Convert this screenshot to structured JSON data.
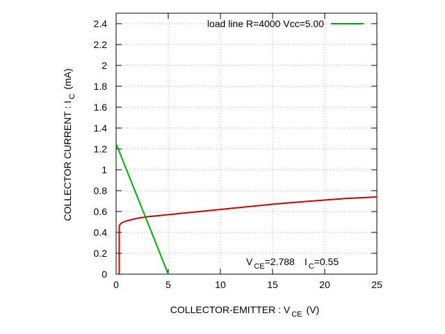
{
  "chart_data": {
    "type": "line",
    "title": "",
    "xlabel": {
      "main": "COLLECTOR-EMITTER : V",
      "sub": "CE",
      "unit": "(V)"
    },
    "ylabel": {
      "main": "COLLECTOR CURRENT : I",
      "sub": "C",
      "unit": "(mA)"
    },
    "xlim": [
      0,
      25
    ],
    "ylim": [
      0,
      2.5
    ],
    "xticks": [
      "0",
      "5",
      "10",
      "15",
      "20",
      "25"
    ],
    "xtick_values": [
      0,
      5,
      10,
      15,
      20,
      25
    ],
    "yticks": [
      "0",
      "0.2",
      "0.4",
      "0.6",
      "0.8",
      "1",
      "1.2",
      "1.4",
      "1.6",
      "1.8",
      "2",
      "2.2",
      "2.4"
    ],
    "ytick_values": [
      0,
      0.2,
      0.4,
      0.6,
      0.8,
      1,
      1.2,
      1.4,
      1.6,
      1.8,
      2,
      2.2,
      2.4
    ],
    "grid": true,
    "legend_position": "top-right",
    "series": [
      {
        "color": "#cc0000",
        "points": [
          [
            0.3,
            0
          ],
          [
            0.3,
            0.46
          ],
          [
            0.4,
            0.48
          ],
          [
            0.6,
            0.495
          ],
          [
            1,
            0.51
          ],
          [
            2,
            0.535
          ],
          [
            3,
            0.55
          ],
          [
            5,
            0.57
          ],
          [
            8,
            0.6
          ],
          [
            10,
            0.62
          ],
          [
            12,
            0.64
          ],
          [
            15,
            0.67
          ],
          [
            18,
            0.695
          ],
          [
            20,
            0.71
          ],
          [
            22,
            0.725
          ],
          [
            25,
            0.74
          ]
        ]
      },
      {
        "name": "load line R=4000 Vcc=5.00",
        "color": "#00aa00",
        "points": [
          [
            0,
            1.25
          ],
          [
            5,
            0
          ]
        ]
      }
    ],
    "annotation": {
      "v_prefix": "V",
      "v_sub": "CE",
      "v_value": "=2.788",
      "i_prefix": "I",
      "i_sub": "C",
      "i_value": "=0.55"
    }
  }
}
